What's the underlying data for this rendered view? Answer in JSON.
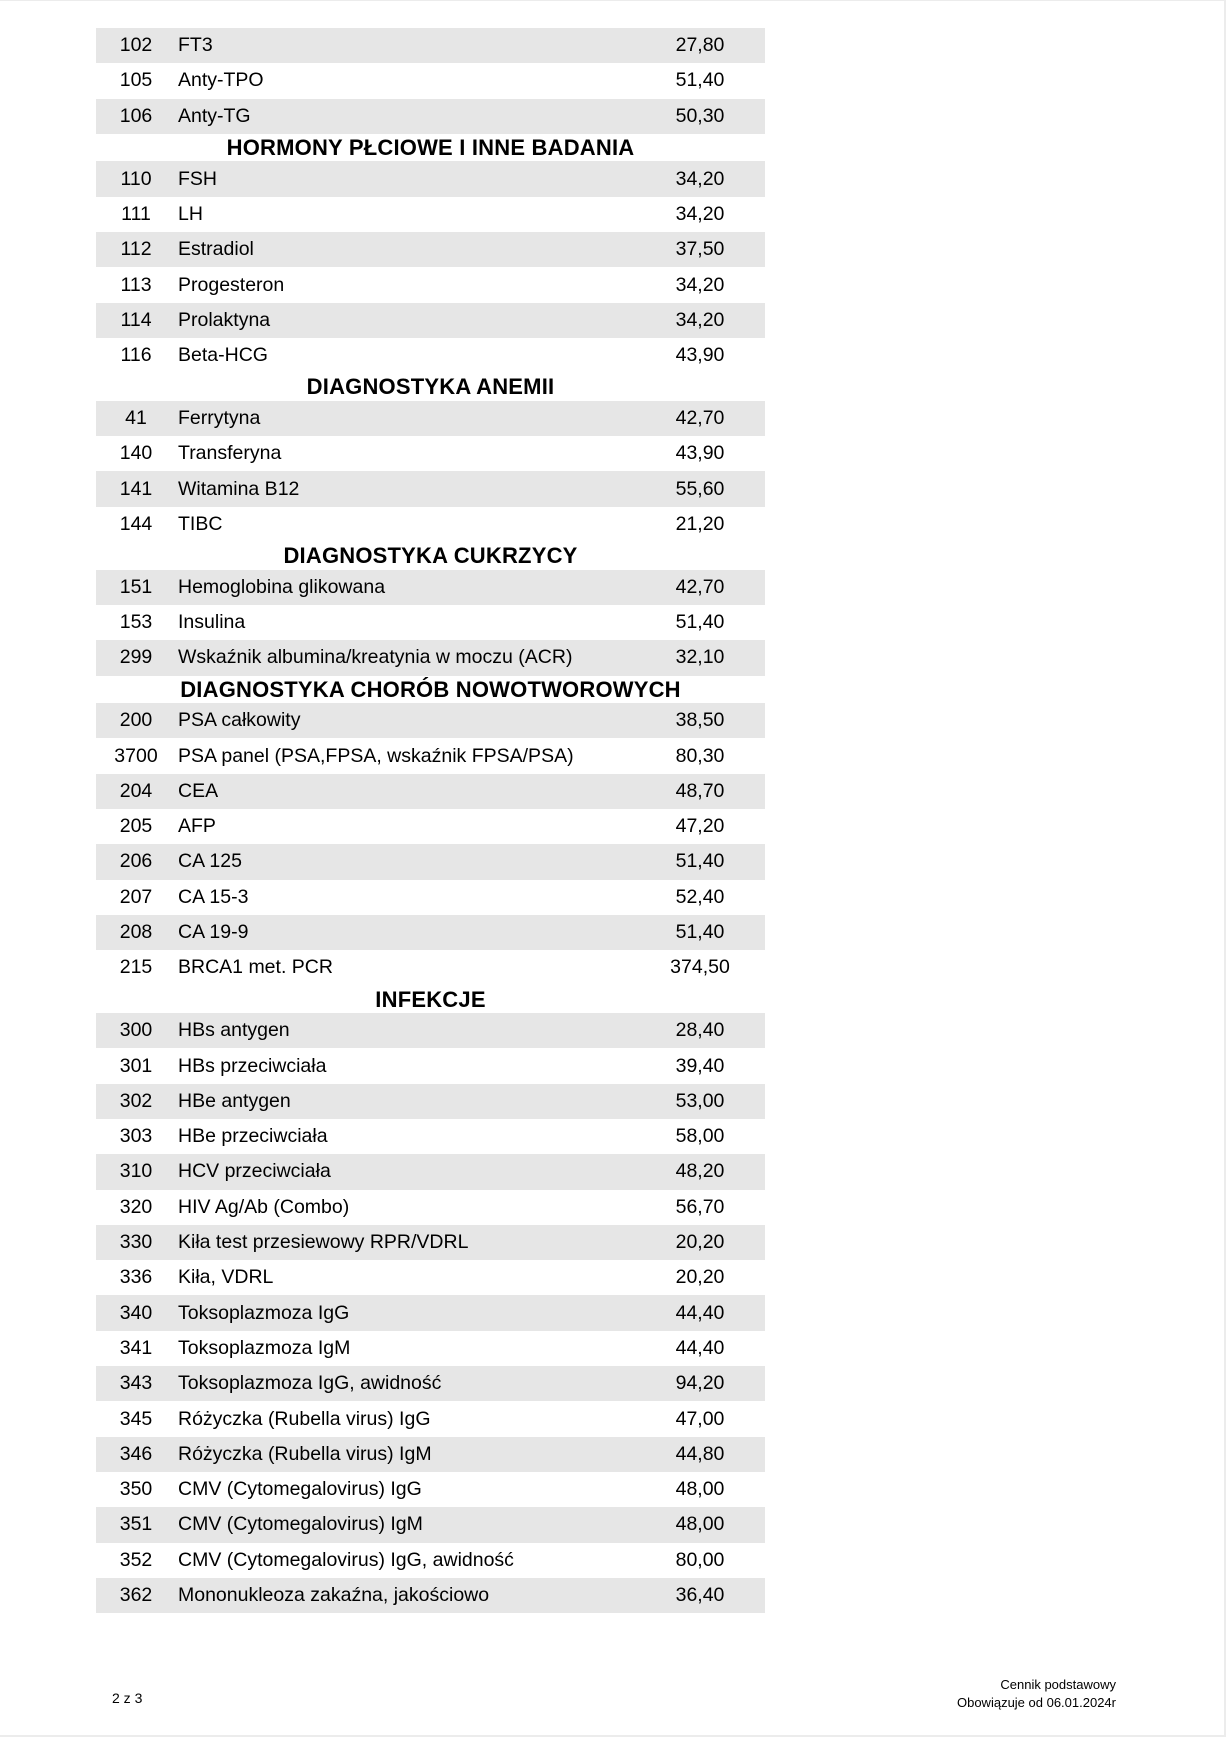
{
  "sections": [
    {
      "title": "",
      "rows": [
        {
          "code": "102",
          "name": "FT3",
          "price": "27,80"
        },
        {
          "code": "105",
          "name": "Anty-TPO",
          "price": "51,40"
        },
        {
          "code": "106",
          "name": "Anty-TG",
          "price": "50,30"
        }
      ]
    },
    {
      "title": "HORMONY PŁCIOWE I INNE BADANIA",
      "rows": [
        {
          "code": "110",
          "name": "FSH",
          "price": "34,20"
        },
        {
          "code": "111",
          "name": "LH",
          "price": "34,20"
        },
        {
          "code": "112",
          "name": "Estradiol",
          "price": "37,50"
        },
        {
          "code": "113",
          "name": "Progesteron",
          "price": "34,20"
        },
        {
          "code": "114",
          "name": "Prolaktyna",
          "price": "34,20"
        },
        {
          "code": "116",
          "name": "Beta-HCG",
          "price": "43,90"
        }
      ]
    },
    {
      "title": "DIAGNOSTYKA ANEMII",
      "rows": [
        {
          "code": "41",
          "name": "Ferrytyna",
          "price": "42,70"
        },
        {
          "code": "140",
          "name": "Transferyna",
          "price": "43,90"
        },
        {
          "code": "141",
          "name": "Witamina B12",
          "price": "55,60"
        },
        {
          "code": "144",
          "name": "TIBC",
          "price": "21,20"
        }
      ]
    },
    {
      "title": "DIAGNOSTYKA CUKRZYCY",
      "rows": [
        {
          "code": "151",
          "name": "Hemoglobina glikowana",
          "price": "42,70"
        },
        {
          "code": "153",
          "name": "Insulina",
          "price": "51,40"
        },
        {
          "code": "299",
          "name": "Wskaźnik albumina/kreatynia w moczu (ACR)",
          "price": "32,10"
        }
      ]
    },
    {
      "title": "DIAGNOSTYKA CHORÓB NOWOTWOROWYCH",
      "rows": [
        {
          "code": "200",
          "name": "PSA całkowity",
          "price": "38,50"
        },
        {
          "code": "3700",
          "name": "PSA panel (PSA,FPSA, wskaźnik FPSA/PSA)",
          "price": "80,30"
        },
        {
          "code": "204",
          "name": "CEA",
          "price": "48,70"
        },
        {
          "code": "205",
          "name": "AFP",
          "price": "47,20"
        },
        {
          "code": "206",
          "name": "CA 125",
          "price": "51,40"
        },
        {
          "code": "207",
          "name": "CA 15-3",
          "price": "52,40"
        },
        {
          "code": "208",
          "name": "CA 19-9",
          "price": "51,40"
        },
        {
          "code": "215",
          "name": "BRCA1 met. PCR",
          "price": "374,50"
        }
      ]
    },
    {
      "title": "INFEKCJE",
      "rows": [
        {
          "code": "300",
          "name": "HBs antygen",
          "price": "28,40"
        },
        {
          "code": "301",
          "name": "HBs przeciwciała",
          "price": "39,40"
        },
        {
          "code": "302",
          "name": "HBe antygen",
          "price": "53,00"
        },
        {
          "code": "303",
          "name": "HBe przeciwciała",
          "price": "58,00"
        },
        {
          "code": "310",
          "name": "HCV przeciwciała",
          "price": "48,20"
        },
        {
          "code": "320",
          "name": "HIV Ag/Ab (Combo)",
          "price": "56,70"
        },
        {
          "code": "330",
          "name": "Kiła test przesiewowy RPR/VDRL",
          "price": "20,20"
        },
        {
          "code": "336",
          "name": "Kiła, VDRL",
          "price": "20,20"
        },
        {
          "code": "340",
          "name": "Toksoplazmoza IgG",
          "price": "44,40"
        },
        {
          "code": "341",
          "name": "Toksoplazmoza IgM",
          "price": "44,40"
        },
        {
          "code": "343",
          "name": "Toksoplazmoza IgG, awidność",
          "price": "94,20"
        },
        {
          "code": "345",
          "name": "Różyczka (Rubella virus) IgG",
          "price": "47,00"
        },
        {
          "code": "346",
          "name": "Różyczka (Rubella virus) IgM",
          "price": "44,80"
        },
        {
          "code": "350",
          "name": "CMV (Cytomegalovirus) IgG",
          "price": "48,00"
        },
        {
          "code": "351",
          "name": "CMV (Cytomegalovirus) IgM",
          "price": "48,00"
        },
        {
          "code": "352",
          "name": "CMV (Cytomegalovirus) IgG, awidność",
          "price": "80,00"
        },
        {
          "code": "362",
          "name": "Mononukleoza zakaźna, jakościowo",
          "price": "36,40"
        }
      ]
    }
  ],
  "footer": {
    "page": "2 z 3",
    "doc_title": "Cennik podstawowy",
    "valid_from": "Obowiązuje od 06.01.2024r"
  },
  "colors": {
    "row_shade": "#e6e6e6"
  }
}
